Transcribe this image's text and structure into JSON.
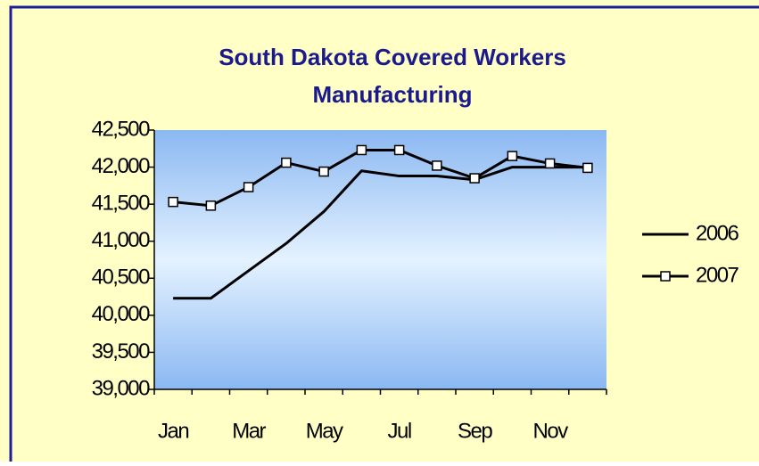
{
  "chart_data": {
    "type": "line",
    "title": "South Dakota Covered Workers",
    "subtitle": "Manufacturing",
    "categories": [
      "Jan",
      null,
      "Mar",
      null,
      "May",
      null,
      "Jul",
      null,
      "Sep",
      null,
      "Nov",
      null
    ],
    "series": [
      {
        "name": "2006",
        "color": "#000000",
        "marker": "none",
        "values": [
          40230,
          40230,
          40600,
          40970,
          41400,
          41950,
          41880,
          41880,
          41830,
          42000,
          42000,
          42000
        ]
      },
      {
        "name": "2007",
        "color": "#000000",
        "marker": "square",
        "values": [
          41530,
          41480,
          41730,
          42060,
          41940,
          42230,
          42230,
          42020,
          41850,
          42150,
          42050,
          41990
        ]
      }
    ],
    "ylim": [
      39000,
      42500
    ],
    "yticks": [
      {
        "value": 39000,
        "label": "39,000"
      },
      {
        "value": 39500,
        "label": "39,500"
      },
      {
        "value": 40000,
        "label": "40,000"
      },
      {
        "value": 40500,
        "label": "40,500"
      },
      {
        "value": 41000,
        "label": "41,000"
      },
      {
        "value": 41500,
        "label": "41,500"
      },
      {
        "value": 42000,
        "label": "42,000"
      },
      {
        "value": 42500,
        "label": "42,500"
      }
    ],
    "grid": false,
    "legend": "right"
  }
}
